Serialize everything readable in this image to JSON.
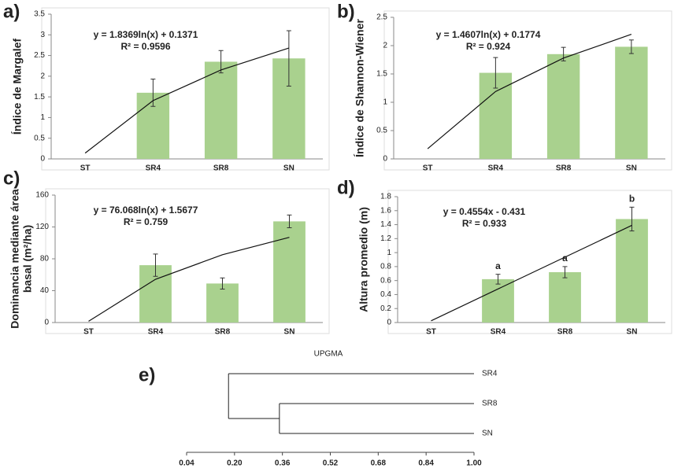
{
  "chart_data": [
    {
      "type": "bar",
      "label": "a)",
      "ylabel": [
        "Índice de Margalef"
      ],
      "categories": [
        "ST",
        "SR4",
        "SR8",
        "SN"
      ],
      "values": [
        null,
        1.6,
        2.35,
        2.43
      ],
      "errors": [
        null,
        0.33,
        0.27,
        0.67
      ],
      "color": "#a9d18e",
      "trendline": {
        "equation": "y = 1.8369ln(x) + 0.1371",
        "r2": "R² = 0.9596",
        "values": [
          0.14,
          1.41,
          2.15,
          2.68
        ]
      },
      "ylim": [
        0,
        3.5
      ],
      "yticks": [
        0,
        0.5,
        1,
        1.5,
        2,
        2.5,
        3,
        3.5
      ]
    },
    {
      "type": "bar",
      "label": "b)",
      "ylabel": [
        "Índice de Shannon-Wiener"
      ],
      "categories": [
        "ST",
        "SR4",
        "SR8",
        "SN"
      ],
      "values": [
        null,
        1.52,
        1.85,
        1.98
      ],
      "errors": [
        null,
        0.27,
        0.12,
        0.12
      ],
      "color": "#a9d18e",
      "trendline": {
        "equation": "y = 1.4607ln(x) + 0.1774",
        "r2": "R² = 0.924",
        "values": [
          0.18,
          1.19,
          1.78,
          2.2
        ]
      },
      "ylim": [
        0,
        2.5
      ],
      "yticks": [
        0,
        0.5,
        1,
        1.5,
        2,
        2.5
      ]
    },
    {
      "type": "bar",
      "label": "c)",
      "ylabel": [
        "Dominancia mediante área",
        "basal (m²/ha)"
      ],
      "categories": [
        "ST",
        "SR4",
        "SR8",
        "SN"
      ],
      "values": [
        null,
        72,
        49,
        127
      ],
      "errors": [
        null,
        14,
        7,
        8
      ],
      "color": "#a9d18e",
      "trendline": {
        "equation": "y = 76.068ln(x) + 1.5677",
        "r2": "R² = 0.759",
        "values": [
          1.57,
          54.3,
          85.1,
          107
        ]
      },
      "ylim": [
        0,
        160
      ],
      "yticks": [
        0,
        40,
        80,
        120,
        160
      ]
    },
    {
      "type": "bar",
      "label": "d)",
      "ylabel": [
        "Altura promedio (m)"
      ],
      "categories": [
        "ST",
        "SR4",
        "SR8",
        "SN"
      ],
      "values": [
        null,
        0.62,
        0.72,
        1.48
      ],
      "errors": [
        null,
        0.07,
        0.08,
        0.17
      ],
      "letters": [
        null,
        "a",
        "a",
        "b"
      ],
      "color": "#a9d18e",
      "trendline": {
        "equation": "y = 0.4554x - 0.431",
        "r2": "R² = 0.933",
        "values": [
          0.025,
          0.48,
          0.935,
          1.39
        ]
      },
      "ylim": [
        0,
        1.8
      ],
      "yticks": [
        0,
        0.2,
        0.4,
        0.6,
        0.8,
        1,
        1.2,
        1.4,
        1.6,
        1.8
      ]
    },
    {
      "type": "dendrogram",
      "label": "e)",
      "title": "UPGMA",
      "leaves": [
        "SR4",
        "SR8",
        "SN"
      ],
      "merge_heights": [
        0.18,
        0.35
      ],
      "xlim": [
        0.04,
        1.0
      ],
      "xticks": [
        0.04,
        {
          "value": 0.2,
          "label": "0.20"
        },
        0.36,
        0.52,
        0.68,
        0.84,
        {
          "value": 1,
          "label": "1.00"
        }
      ]
    }
  ]
}
